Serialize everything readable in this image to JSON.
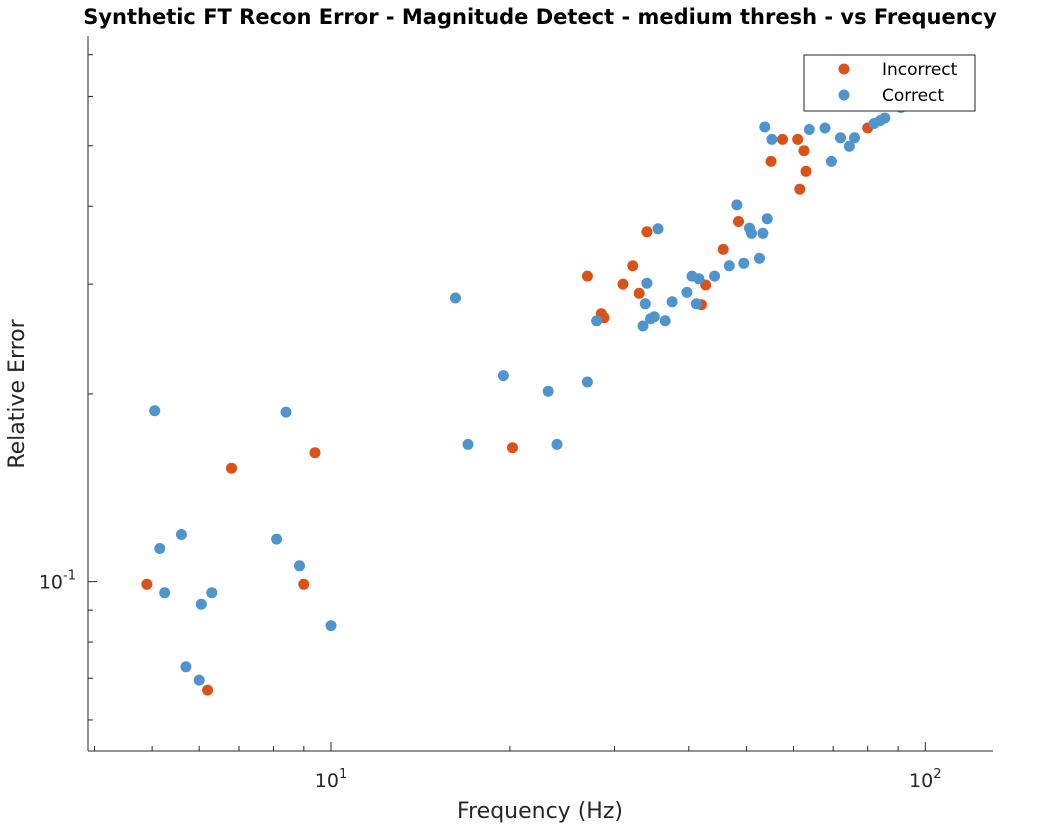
{
  "chart_data": {
    "type": "scatter",
    "title": "Synthetic FT Recon Error - Magnitude Detect - medium thresh - vs Frequency",
    "xlabel": "Frequency (Hz)",
    "ylabel": "Relative Error",
    "xscale": "log",
    "yscale": "log",
    "xlim": [
      3.9,
      130
    ],
    "ylim": [
      0.0535,
      0.75
    ],
    "x_tick_labels": [
      {
        "value": 10,
        "base": "10",
        "exp": "1"
      },
      {
        "value": 100,
        "base": "10",
        "exp": "2"
      }
    ],
    "y_tick_labels": [
      {
        "value": 0.1,
        "base": "10",
        "exp": "-1"
      }
    ],
    "grid": false,
    "legend_position": "top-right",
    "series": [
      {
        "name": "Incorrect",
        "color": "#D95319",
        "points": [
          [
            4.9,
            0.099
          ],
          [
            6.2,
            0.067
          ],
          [
            6.8,
            0.152
          ],
          [
            9.0,
            0.099
          ],
          [
            9.4,
            0.161
          ],
          [
            20.2,
            0.164
          ],
          [
            27.0,
            0.309
          ],
          [
            28.5,
            0.269
          ],
          [
            28.8,
            0.265
          ],
          [
            31.0,
            0.3
          ],
          [
            32.2,
            0.321
          ],
          [
            33.0,
            0.29
          ],
          [
            34.0,
            0.364
          ],
          [
            42.0,
            0.278
          ],
          [
            42.7,
            0.299
          ],
          [
            45.7,
            0.341
          ],
          [
            48.5,
            0.378
          ],
          [
            55.0,
            0.472
          ],
          [
            57.5,
            0.512
          ],
          [
            61.0,
            0.512
          ],
          [
            61.5,
            0.426
          ],
          [
            62.5,
            0.491
          ],
          [
            63.0,
            0.455
          ],
          [
            80.0,
            0.534
          ]
        ]
      },
      {
        "name": "Correct",
        "color": "#4F94CD",
        "points": [
          [
            5.05,
            0.188
          ],
          [
            5.15,
            0.113
          ],
          [
            5.25,
            0.096
          ],
          [
            5.6,
            0.119
          ],
          [
            5.7,
            0.073
          ],
          [
            6.0,
            0.0695
          ],
          [
            6.05,
            0.092
          ],
          [
            6.3,
            0.096
          ],
          [
            8.1,
            0.117
          ],
          [
            8.4,
            0.187
          ],
          [
            8.85,
            0.106
          ],
          [
            10.0,
            0.085
          ],
          [
            16.2,
            0.285
          ],
          [
            17.0,
            0.166
          ],
          [
            19.5,
            0.214
          ],
          [
            23.2,
            0.202
          ],
          [
            24.0,
            0.166
          ],
          [
            27.0,
            0.209
          ],
          [
            28.0,
            0.262
          ],
          [
            33.5,
            0.257
          ],
          [
            33.8,
            0.279
          ],
          [
            34.0,
            0.301
          ],
          [
            34.5,
            0.264
          ],
          [
            35.0,
            0.266
          ],
          [
            35.5,
            0.368
          ],
          [
            36.5,
            0.262
          ],
          [
            37.5,
            0.281
          ],
          [
            39.7,
            0.291
          ],
          [
            40.5,
            0.309
          ],
          [
            41.2,
            0.279
          ],
          [
            41.6,
            0.306
          ],
          [
            44.2,
            0.309
          ],
          [
            46.8,
            0.321
          ],
          [
            48.2,
            0.402
          ],
          [
            49.5,
            0.324
          ],
          [
            50.6,
            0.369
          ],
          [
            51.0,
            0.362
          ],
          [
            52.6,
            0.33
          ],
          [
            53.3,
            0.362
          ],
          [
            53.7,
            0.536
          ],
          [
            54.2,
            0.382
          ],
          [
            55.2,
            0.512
          ],
          [
            63.8,
            0.531
          ],
          [
            67.8,
            0.534
          ],
          [
            69.5,
            0.472
          ],
          [
            72.0,
            0.515
          ],
          [
            74.5,
            0.499
          ],
          [
            76.0,
            0.515
          ],
          [
            82.0,
            0.543
          ],
          [
            84.0,
            0.549
          ],
          [
            85.5,
            0.554
          ],
          [
            91.0,
            0.576
          ]
        ]
      }
    ]
  }
}
